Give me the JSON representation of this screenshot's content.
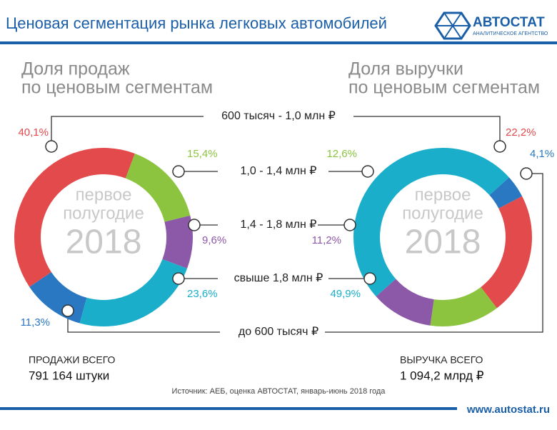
{
  "header": {
    "title": "Ценовая сегментация рынка легковых автомобилей",
    "logo": "АВТОСТАТ",
    "logo_subtitle": "АНАЛИТИЧЕСКОЕ АГЕНТСТВО"
  },
  "chart_data": [
    {
      "type": "pie",
      "title": [
        "Доля продаж",
        "по ценовым сегментам"
      ],
      "center_text": [
        "первое",
        "полугодие",
        "2018"
      ],
      "categories": [
        "до 600 тысяч ₽",
        "600 тысяч - 1,0 млн ₽",
        "1,0 - 1,4 млн ₽",
        "1,4 - 1,8 млн ₽",
        "свыше 1,8 млн ₽"
      ],
      "colors": [
        "#2a78c2",
        "#e24a4c",
        "#8cc43f",
        "#8c58a8",
        "#1aaecb"
      ],
      "values": [
        11.3,
        40.1,
        15.4,
        9.6,
        23.6
      ],
      "value_labels": [
        "11,3%",
        "40,1%",
        "15,4%",
        "9,6%",
        "23,6%"
      ],
      "total": {
        "label": "ПРОДАЖИ ВСЕГО",
        "value": "791 164 штуки"
      }
    },
    {
      "type": "pie",
      "title": [
        "Доля выручки",
        "по ценовым сегментам"
      ],
      "center_text": [
        "первое",
        "полугодие",
        "2018"
      ],
      "colors": [
        "#2a78c2",
        "#e24a4c",
        "#8cc43f",
        "#8c58a8",
        "#1aaecb"
      ],
      "values": [
        4.1,
        22.2,
        12.6,
        11.2,
        49.9
      ],
      "value_labels": [
        "4,1%",
        "22,2%",
        "12,6%",
        "11,2%",
        "49,9%"
      ],
      "total": {
        "label": "ВЫРУЧКА ВСЕГО",
        "value": "1 094,2 млрд ₽"
      }
    }
  ],
  "footer": {
    "source": "Источник: АЕБ, оценка АВТОСТАТ, январь-июнь 2018 года",
    "url": "www.autostat.ru"
  }
}
